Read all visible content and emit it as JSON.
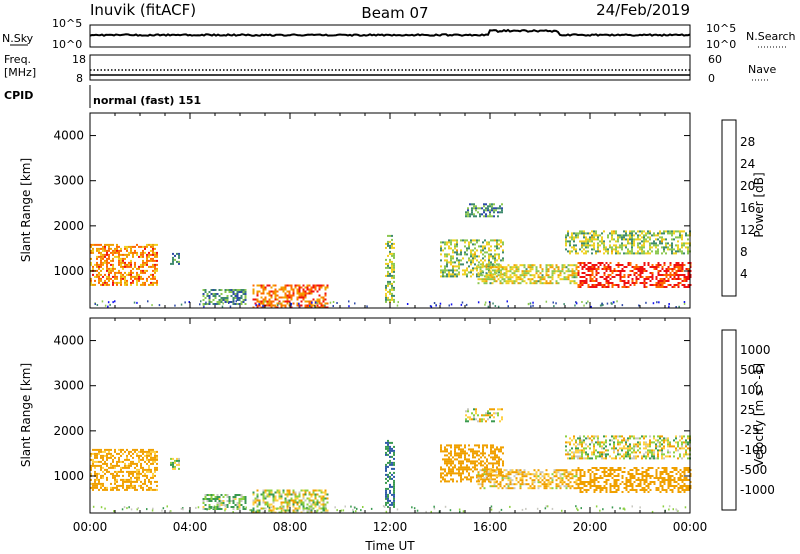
{
  "header": {
    "station": "Inuvik (fitACF)",
    "beam": "Beam 07",
    "date": "24/Feb/2019"
  },
  "noise_panel": {
    "left_label": "N.Sky",
    "right_label": "N.Search",
    "left_ticks": [
      "10^5",
      "10^0"
    ],
    "right_ticks": [
      "10^5",
      "10^0"
    ]
  },
  "freq_panel": {
    "left_label_line1": "Freq.",
    "left_label_line2": "[MHz]",
    "left_ticks": [
      "18",
      "8"
    ],
    "right_label": "Nave",
    "right_ticks": [
      "60",
      "0"
    ]
  },
  "cpid": {
    "label": "CPID",
    "value": "normal (fast) 151"
  },
  "colors": {
    "power_scale": [
      "#1414f0",
      "#2e4aa8",
      "#3f8a6e",
      "#8cc850",
      "#f0d020",
      "#f0a000",
      "#ff6a00",
      "#f01010"
    ],
    "velocity_scale": [
      "#f01010",
      "#ff6a00",
      "#f0a000",
      "#ffd040",
      "#c8c8c0",
      "#8cd040",
      "#3a9a50",
      "#2e5aa8",
      "#1a1ad0"
    ]
  },
  "chart_data": [
    {
      "type": "heatmap",
      "title": "",
      "ylabel": "Slant Range [km]",
      "xlabel": "",
      "xlim": [
        "00:00",
        "24:00"
      ],
      "ylim": [
        180,
        4500
      ],
      "y_ticks": [
        "1000",
        "2000",
        "3000",
        "4000"
      ],
      "colorbar_label": "Power [dB]",
      "colorbar_ticks": [
        "4",
        "8",
        "12",
        "16",
        "20",
        "24",
        "28"
      ],
      "colorbar_range": [
        0,
        30
      ],
      "regions": [
        {
          "t": [
            0.0,
            2.7
          ],
          "r": [
            700,
            1600
          ],
          "value": 22
        },
        {
          "t": [
            3.2,
            3.6
          ],
          "r": [
            1150,
            1400
          ],
          "value": 10
        },
        {
          "t": [
            4.5,
            6.2
          ],
          "r": [
            250,
            600
          ],
          "value": 10
        },
        {
          "t": [
            6.5,
            9.5
          ],
          "r": [
            200,
            700
          ],
          "value": 24
        },
        {
          "t": [
            11.8,
            12.2
          ],
          "r": [
            300,
            1800
          ],
          "value": 14
        },
        {
          "t": [
            14.0,
            16.5
          ],
          "r": [
            900,
            1700
          ],
          "value": 14
        },
        {
          "t": [
            15.5,
            19.5
          ],
          "r": [
            750,
            1150
          ],
          "value": 16
        },
        {
          "t": [
            19.5,
            24.0
          ],
          "r": [
            650,
            1200
          ],
          "value": 28
        },
        {
          "t": [
            19.0,
            24.0
          ],
          "r": [
            1400,
            1900
          ],
          "value": 14
        },
        {
          "t": [
            15.0,
            16.5
          ],
          "r": [
            2200,
            2500
          ],
          "value": 10
        }
      ]
    },
    {
      "type": "heatmap",
      "title": "",
      "ylabel": "Slant Range [km]",
      "xlabel": "Time UT",
      "xlim": [
        "00:00",
        "24:00"
      ],
      "ylim": [
        180,
        4500
      ],
      "x_ticks": [
        "00:00",
        "04:00",
        "08:00",
        "12:00",
        "16:00",
        "20:00",
        "00:00"
      ],
      "y_ticks": [
        "1000",
        "2000",
        "3000",
        "4000"
      ],
      "colorbar_label": "Velocity [m s^-1]",
      "colorbar_ticks": [
        "1000",
        "500",
        "100",
        "25",
        "-25",
        "-100",
        "-500",
        "-1000"
      ],
      "regions": [
        {
          "t": [
            0.0,
            2.7
          ],
          "r": [
            700,
            1600
          ],
          "value": -200
        },
        {
          "t": [
            3.2,
            3.6
          ],
          "r": [
            1150,
            1400
          ],
          "value": 50
        },
        {
          "t": [
            4.5,
            6.2
          ],
          "r": [
            250,
            600
          ],
          "value": 100
        },
        {
          "t": [
            6.5,
            9.5
          ],
          "r": [
            200,
            700
          ],
          "value": 0
        },
        {
          "t": [
            11.8,
            12.2
          ],
          "r": [
            300,
            1800
          ],
          "value": 500
        },
        {
          "t": [
            14.0,
            16.5
          ],
          "r": [
            900,
            1700
          ],
          "value": -300
        },
        {
          "t": [
            15.5,
            19.5
          ],
          "r": [
            750,
            1150
          ],
          "value": -100
        },
        {
          "t": [
            19.5,
            24.0
          ],
          "r": [
            650,
            1200
          ],
          "value": -300
        },
        {
          "t": [
            19.0,
            24.0
          ],
          "r": [
            1400,
            1900
          ],
          "value": 0
        },
        {
          "t": [
            15.0,
            16.5
          ],
          "r": [
            2200,
            2500
          ],
          "value": 0
        }
      ]
    }
  ]
}
